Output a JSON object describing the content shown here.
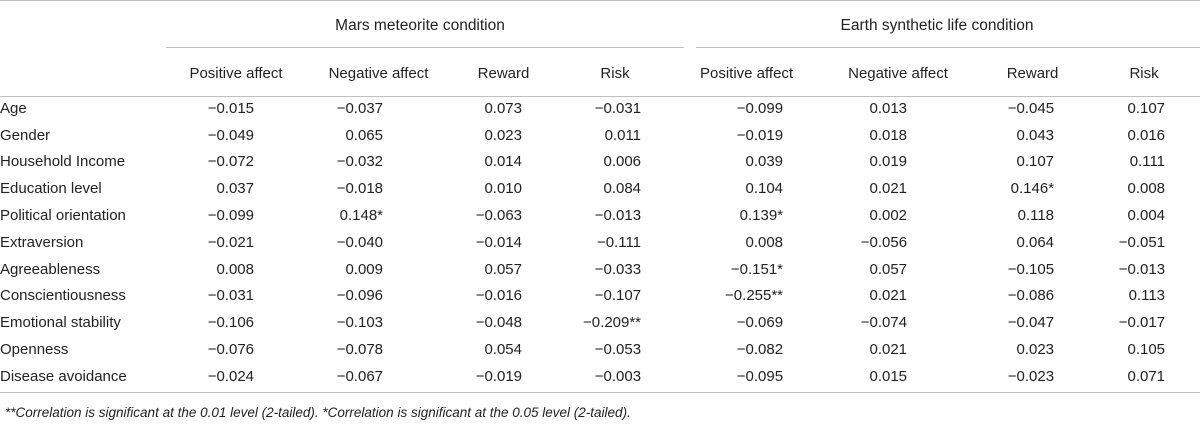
{
  "table": {
    "groups": {
      "mars": "Mars meteorite condition",
      "earth": "Earth synthetic life condition"
    },
    "columns": [
      "Positive affect",
      "Negative affect",
      "Reward",
      "Risk",
      "Positive affect",
      "Negative affect",
      "Reward",
      "Risk"
    ],
    "rows": [
      {
        "label": "Age",
        "values": [
          "−0.015",
          "−0.037",
          "0.073",
          "−0.031",
          "−0.099",
          "0.013",
          "−0.045",
          "0.107"
        ]
      },
      {
        "label": "Gender",
        "values": [
          "−0.049",
          "0.065",
          "0.023",
          "0.011",
          "−0.019",
          "0.018",
          "0.043",
          "0.016"
        ]
      },
      {
        "label": "Household Income",
        "values": [
          "−0.072",
          "−0.032",
          "0.014",
          "0.006",
          "0.039",
          "0.019",
          "0.107",
          "0.111"
        ]
      },
      {
        "label": "Education level",
        "values": [
          "0.037",
          "−0.018",
          "0.010",
          "0.084",
          "0.104",
          "0.021",
          "0.146*",
          "0.008"
        ]
      },
      {
        "label": "Political orientation",
        "values": [
          "−0.099",
          "0.148*",
          "−0.063",
          "−0.013",
          "0.139*",
          "0.002",
          "0.118",
          "0.004"
        ]
      },
      {
        "label": "Extraversion",
        "values": [
          "−0.021",
          "−0.040",
          "−0.014",
          "−0.111",
          "0.008",
          "−0.056",
          "0.064",
          "−0.051"
        ]
      },
      {
        "label": "Agreeableness",
        "values": [
          "0.008",
          "0.009",
          "0.057",
          "−0.033",
          "−0.151*",
          "0.057",
          "−0.105",
          "−0.013"
        ]
      },
      {
        "label": "Conscientiousness",
        "values": [
          "−0.031",
          "−0.096",
          "−0.016",
          "−0.107",
          "−0.255**",
          "0.021",
          "−0.086",
          "0.113"
        ]
      },
      {
        "label": "Emotional stability",
        "values": [
          "−0.106",
          "−0.103",
          "−0.048",
          "−0.209**",
          "−0.069",
          "−0.074",
          "−0.047",
          "−0.017"
        ]
      },
      {
        "label": "Openness",
        "values": [
          "−0.076",
          "−0.078",
          "0.054",
          "−0.053",
          "−0.082",
          "0.021",
          "0.023",
          "0.105"
        ]
      },
      {
        "label": "Disease avoidance",
        "values": [
          "−0.024",
          "−0.067",
          "−0.019",
          "−0.003",
          "−0.095",
          "0.015",
          "−0.023",
          "0.071"
        ]
      }
    ]
  },
  "footnote": "**Correlation is significant at the 0.01 level (2-tailed). *Correlation is significant at the 0.05 level (2-tailed)."
}
